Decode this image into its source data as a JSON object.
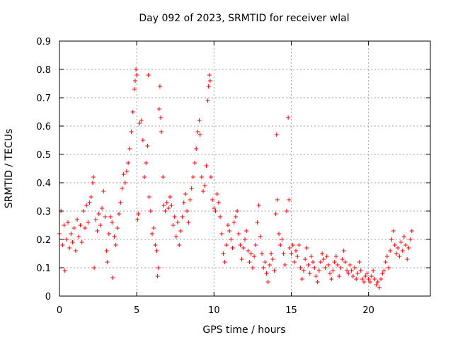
{
  "chart_data": {
    "type": "scatter",
    "title": "Day 092 of 2023, SRMTID for receiver wlal",
    "xlabel": "GPS time / hours",
    "ylabel": "SRMTID / TECUs",
    "xlim": [
      0,
      24
    ],
    "ylim": [
      0,
      0.9
    ],
    "x_ticks": [
      0,
      5,
      10,
      15,
      20
    ],
    "x_tick_labels": [
      "0",
      "5",
      "10",
      "15",
      "20"
    ],
    "y_ticks": [
      0,
      0.1,
      0.2,
      0.3,
      0.4,
      0.5,
      0.6,
      0.7,
      0.8,
      0.9
    ],
    "y_tick_labels": [
      "0",
      "0.1",
      "0.2",
      "0.3",
      "0.4",
      "0.5",
      "0.6",
      "0.7",
      "0.8",
      "0.9"
    ],
    "grid": true,
    "marker": "+",
    "color": "#ff0000",
    "series": [
      {
        "name": "SRMTID",
        "points": [
          [
            0.0,
            0.22
          ],
          [
            0.1,
            0.3
          ],
          [
            0.2,
            0.18
          ],
          [
            0.3,
            0.25
          ],
          [
            0.35,
            0.09
          ],
          [
            0.45,
            0.2
          ],
          [
            0.55,
            0.26
          ],
          [
            0.65,
            0.17
          ],
          [
            0.75,
            0.22
          ],
          [
            0.85,
            0.19
          ],
          [
            0.95,
            0.24
          ],
          [
            1.05,
            0.16
          ],
          [
            1.15,
            0.27
          ],
          [
            1.25,
            0.21
          ],
          [
            1.35,
            0.25
          ],
          [
            1.45,
            0.19
          ],
          [
            1.55,
            0.3
          ],
          [
            1.65,
            0.24
          ],
          [
            1.75,
            0.32
          ],
          [
            1.85,
            0.26
          ],
          [
            1.95,
            0.33
          ],
          [
            2.05,
            0.35
          ],
          [
            2.15,
            0.4
          ],
          [
            2.2,
            0.42
          ],
          [
            2.25,
            0.1
          ],
          [
            2.35,
            0.27
          ],
          [
            2.45,
            0.23
          ],
          [
            2.55,
            0.29
          ],
          [
            2.65,
            0.25
          ],
          [
            2.75,
            0.31
          ],
          [
            2.85,
            0.37
          ],
          [
            2.95,
            0.28
          ],
          [
            3.05,
            0.16
          ],
          [
            3.1,
            0.12
          ],
          [
            3.2,
            0.22
          ],
          [
            3.3,
            0.28
          ],
          [
            3.4,
            0.26
          ],
          [
            3.45,
            0.065
          ],
          [
            3.55,
            0.21
          ],
          [
            3.65,
            0.18
          ],
          [
            3.75,
            0.24
          ],
          [
            3.85,
            0.29
          ],
          [
            3.95,
            0.33
          ],
          [
            4.05,
            0.38
          ],
          [
            4.15,
            0.43
          ],
          [
            4.25,
            0.4
          ],
          [
            4.35,
            0.44
          ],
          [
            4.45,
            0.47
          ],
          [
            4.55,
            0.52
          ],
          [
            4.65,
            0.58
          ],
          [
            4.75,
            0.65
          ],
          [
            4.85,
            0.73
          ],
          [
            4.9,
            0.76
          ],
          [
            4.95,
            0.8
          ],
          [
            5.0,
            0.78
          ],
          [
            5.05,
            0.27
          ],
          [
            5.1,
            0.29
          ],
          [
            5.2,
            0.61
          ],
          [
            5.3,
            0.62
          ],
          [
            5.4,
            0.55
          ],
          [
            5.5,
            0.42
          ],
          [
            5.6,
            0.47
          ],
          [
            5.7,
            0.53
          ],
          [
            5.75,
            0.78
          ],
          [
            5.8,
            0.35
          ],
          [
            5.9,
            0.3
          ],
          [
            6.0,
            0.22
          ],
          [
            6.1,
            0.24
          ],
          [
            6.2,
            0.18
          ],
          [
            6.3,
            0.16
          ],
          [
            6.35,
            0.07
          ],
          [
            6.4,
            0.1
          ],
          [
            6.45,
            0.66
          ],
          [
            6.5,
            0.74
          ],
          [
            6.55,
            0.63
          ],
          [
            6.6,
            0.58
          ],
          [
            6.7,
            0.42
          ],
          [
            6.75,
            0.32
          ],
          [
            6.85,
            0.3
          ],
          [
            6.95,
            0.33
          ],
          [
            7.05,
            0.31
          ],
          [
            7.15,
            0.35
          ],
          [
            7.25,
            0.32
          ],
          [
            7.35,
            0.25
          ],
          [
            7.45,
            0.28
          ],
          [
            7.55,
            0.21
          ],
          [
            7.65,
            0.26
          ],
          [
            7.75,
            0.18
          ],
          [
            7.85,
            0.23
          ],
          [
            7.95,
            0.28
          ],
          [
            8.05,
            0.33
          ],
          [
            8.15,
            0.36
          ],
          [
            8.25,
            0.3
          ],
          [
            8.35,
            0.26
          ],
          [
            8.45,
            0.34
          ],
          [
            8.55,
            0.38
          ],
          [
            8.65,
            0.42
          ],
          [
            8.75,
            0.47
          ],
          [
            8.85,
            0.52
          ],
          [
            8.95,
            0.58
          ],
          [
            9.05,
            0.62
          ],
          [
            9.1,
            0.57
          ],
          [
            9.2,
            0.42
          ],
          [
            9.3,
            0.37
          ],
          [
            9.4,
            0.39
          ],
          [
            9.5,
            0.46
          ],
          [
            9.6,
            0.69
          ],
          [
            9.65,
            0.74
          ],
          [
            9.7,
            0.78
          ],
          [
            9.75,
            0.76
          ],
          [
            9.8,
            0.42
          ],
          [
            9.9,
            0.34
          ],
          [
            10.0,
            0.31
          ],
          [
            10.1,
            0.3
          ],
          [
            10.2,
            0.36
          ],
          [
            10.3,
            0.33
          ],
          [
            10.4,
            0.28
          ],
          [
            10.5,
            0.22
          ],
          [
            10.6,
            0.15
          ],
          [
            10.7,
            0.12
          ],
          [
            10.8,
            0.18
          ],
          [
            10.9,
            0.25
          ],
          [
            11.0,
            0.23
          ],
          [
            11.1,
            0.2
          ],
          [
            11.2,
            0.17
          ],
          [
            11.3,
            0.26
          ],
          [
            11.4,
            0.28
          ],
          [
            11.5,
            0.3
          ],
          [
            11.6,
            0.22
          ],
          [
            11.7,
            0.18
          ],
          [
            11.8,
            0.13
          ],
          [
            11.9,
            0.17
          ],
          [
            12.0,
            0.2
          ],
          [
            12.1,
            0.23
          ],
          [
            12.2,
            0.16
          ],
          [
            12.3,
            0.12
          ],
          [
            12.4,
            0.15
          ],
          [
            12.5,
            0.1
          ],
          [
            12.6,
            0.14
          ],
          [
            12.7,
            0.18
          ],
          [
            12.8,
            0.26
          ],
          [
            12.9,
            0.32
          ],
          [
            13.0,
            0.21
          ],
          [
            13.1,
            0.15
          ],
          [
            13.2,
            0.1
          ],
          [
            13.3,
            0.12
          ],
          [
            13.4,
            0.08
          ],
          [
            13.5,
            0.05
          ],
          [
            13.6,
            0.11
          ],
          [
            13.7,
            0.15
          ],
          [
            13.8,
            0.13
          ],
          [
            13.9,
            0.09
          ],
          [
            14.0,
            0.29
          ],
          [
            14.05,
            0.57
          ],
          [
            14.1,
            0.34
          ],
          [
            14.2,
            0.22
          ],
          [
            14.3,
            0.18
          ],
          [
            14.4,
            0.2
          ],
          [
            14.5,
            0.15
          ],
          [
            14.6,
            0.11
          ],
          [
            14.7,
            0.3
          ],
          [
            14.8,
            0.63
          ],
          [
            14.85,
            0.34
          ],
          [
            14.9,
            0.17
          ],
          [
            15.0,
            0.15
          ],
          [
            15.1,
            0.18
          ],
          [
            15.2,
            0.12
          ],
          [
            15.3,
            0.16
          ],
          [
            15.4,
            0.14
          ],
          [
            15.5,
            0.18
          ],
          [
            15.6,
            0.1
          ],
          [
            15.7,
            0.06
          ],
          [
            15.8,
            0.09
          ],
          [
            15.9,
            0.13
          ],
          [
            16.0,
            0.17
          ],
          [
            16.1,
            0.11
          ],
          [
            16.2,
            0.08
          ],
          [
            16.3,
            0.14
          ],
          [
            16.4,
            0.12
          ],
          [
            16.5,
            0.1
          ],
          [
            16.6,
            0.07
          ],
          [
            16.7,
            0.05
          ],
          [
            16.8,
            0.09
          ],
          [
            16.9,
            0.12
          ],
          [
            17.0,
            0.15
          ],
          [
            17.1,
            0.13
          ],
          [
            17.2,
            0.1
          ],
          [
            17.3,
            0.14
          ],
          [
            17.4,
            0.11
          ],
          [
            17.5,
            0.08
          ],
          [
            17.6,
            0.06
          ],
          [
            17.7,
            0.09
          ],
          [
            17.8,
            0.12
          ],
          [
            17.9,
            0.14
          ],
          [
            18.0,
            0.11
          ],
          [
            18.1,
            0.07
          ],
          [
            18.2,
            0.1
          ],
          [
            18.3,
            0.13
          ],
          [
            18.4,
            0.16
          ],
          [
            18.5,
            0.12
          ],
          [
            18.6,
            0.09
          ],
          [
            18.7,
            0.08
          ],
          [
            18.8,
            0.11
          ],
          [
            18.9,
            0.09
          ],
          [
            19.0,
            0.07
          ],
          [
            19.1,
            0.1
          ],
          [
            19.2,
            0.06
          ],
          [
            19.3,
            0.08
          ],
          [
            19.4,
            0.12
          ],
          [
            19.5,
            0.09
          ],
          [
            19.6,
            0.06
          ],
          [
            19.7,
            0.05
          ],
          [
            19.8,
            0.07
          ],
          [
            19.9,
            0.08
          ],
          [
            20.0,
            0.06
          ],
          [
            20.1,
            0.05
          ],
          [
            20.2,
            0.07
          ],
          [
            20.3,
            0.09
          ],
          [
            20.4,
            0.06
          ],
          [
            20.5,
            0.04
          ],
          [
            20.6,
            0.05
          ],
          [
            20.7,
            0.03
          ],
          [
            20.8,
            0.06
          ],
          [
            20.9,
            0.08
          ],
          [
            21.0,
            0.09
          ],
          [
            21.1,
            0.12
          ],
          [
            21.2,
            0.14
          ],
          [
            21.3,
            0.1
          ],
          [
            21.4,
            0.16
          ],
          [
            21.5,
            0.2
          ],
          [
            21.6,
            0.23
          ],
          [
            21.7,
            0.18
          ],
          [
            21.8,
            0.15
          ],
          [
            21.9,
            0.17
          ],
          [
            22.0,
            0.14
          ],
          [
            22.1,
            0.19
          ],
          [
            22.2,
            0.16
          ],
          [
            22.3,
            0.21
          ],
          [
            22.4,
            0.18
          ],
          [
            22.5,
            0.13
          ],
          [
            22.6,
            0.17
          ],
          [
            22.7,
            0.2
          ],
          [
            22.8,
            0.23
          ]
        ]
      }
    ]
  }
}
